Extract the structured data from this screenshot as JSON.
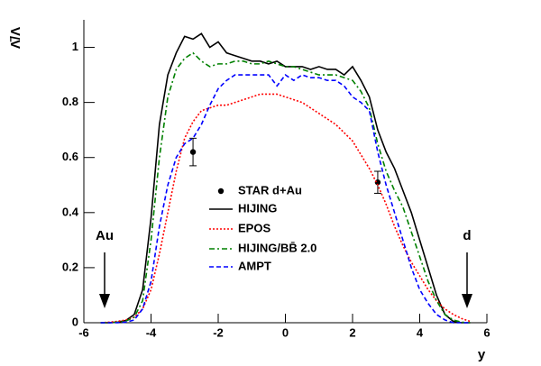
{
  "chart_data": {
    "type": "line",
    "y_label": "Λ̄/Λ",
    "x_label": "y",
    "xlim": [
      -6,
      6
    ],
    "ylim": [
      0,
      1.1
    ],
    "xticks": [
      -6,
      -4,
      -2,
      0,
      2,
      4,
      6
    ],
    "yticks": [
      0,
      0.2,
      0.4,
      0.6,
      0.8,
      1
    ],
    "annotations": [
      "Au",
      "d"
    ],
    "x": [
      -5.5,
      -5.25,
      -5,
      -4.75,
      -4.5,
      -4.25,
      -4,
      -3.75,
      -3.5,
      -3.25,
      -3,
      -2.75,
      -2.5,
      -2.25,
      -2,
      -1.75,
      -1.5,
      -1.25,
      -1,
      -0.75,
      -0.5,
      -0.25,
      0,
      0.25,
      0.5,
      0.75,
      1,
      1.25,
      1.5,
      1.75,
      2,
      2.25,
      2.5,
      2.75,
      3,
      3.25,
      3.5,
      3.75,
      4,
      4.25,
      4.5,
      4.75,
      5,
      5.25,
      5.5
    ],
    "series": [
      {
        "name": "STAR d+Au",
        "color": "#000000",
        "style": "points",
        "x": [
          -2.75,
          2.75
        ],
        "values": [
          0.62,
          0.51
        ],
        "errors": [
          0.05,
          0.04
        ]
      },
      {
        "name": "HIJING",
        "color": "#000000",
        "style": "solid",
        "values": [
          0,
          0,
          0.002,
          0.008,
          0.03,
          0.12,
          0.38,
          0.72,
          0.9,
          0.98,
          1.04,
          1.03,
          1.05,
          1.0,
          1.02,
          0.98,
          0.97,
          0.96,
          0.95,
          0.95,
          0.94,
          0.95,
          0.93,
          0.93,
          0.93,
          0.92,
          0.93,
          0.92,
          0.92,
          0.9,
          0.93,
          0.88,
          0.82,
          0.7,
          0.62,
          0.56,
          0.48,
          0.4,
          0.3,
          0.2,
          0.1,
          0.03,
          0.005,
          0,
          0
        ]
      },
      {
        "name": "EPOS",
        "color": "#ff0000",
        "style": "dotted",
        "values": [
          0,
          0.002,
          0.005,
          0.01,
          0.02,
          0.05,
          0.12,
          0.25,
          0.4,
          0.55,
          0.67,
          0.73,
          0.77,
          0.78,
          0.79,
          0.79,
          0.8,
          0.81,
          0.82,
          0.83,
          0.83,
          0.83,
          0.82,
          0.81,
          0.8,
          0.78,
          0.76,
          0.74,
          0.72,
          0.69,
          0.66,
          0.61,
          0.56,
          0.5,
          0.43,
          0.35,
          0.28,
          0.22,
          0.17,
          0.12,
          0.08,
          0.05,
          0.03,
          0.015,
          0.005
        ]
      },
      {
        "name": "HIJING/BB̄ 2.0",
        "color": "#008000",
        "style": "dashdot",
        "values": [
          0,
          0,
          0.002,
          0.006,
          0.02,
          0.08,
          0.3,
          0.6,
          0.82,
          0.92,
          0.96,
          0.98,
          0.95,
          0.93,
          0.94,
          0.94,
          0.95,
          0.95,
          0.94,
          0.94,
          0.95,
          0.94,
          0.93,
          0.93,
          0.92,
          0.91,
          0.9,
          0.9,
          0.9,
          0.89,
          0.88,
          0.84,
          0.78,
          0.65,
          0.55,
          0.48,
          0.42,
          0.33,
          0.24,
          0.15,
          0.08,
          0.03,
          0.01,
          0.002,
          0
        ]
      },
      {
        "name": "AMPT",
        "color": "#0000ff",
        "style": "dashed",
        "values": [
          0,
          0,
          0,
          0.002,
          0.01,
          0.05,
          0.15,
          0.35,
          0.5,
          0.6,
          0.65,
          0.67,
          0.72,
          0.79,
          0.85,
          0.88,
          0.9,
          0.9,
          0.9,
          0.9,
          0.9,
          0.86,
          0.9,
          0.88,
          0.9,
          0.89,
          0.89,
          0.88,
          0.88,
          0.86,
          0.82,
          0.8,
          0.77,
          0.62,
          0.5,
          0.4,
          0.3,
          0.2,
          0.12,
          0.07,
          0.03,
          0.01,
          0,
          0,
          0
        ]
      }
    ]
  }
}
